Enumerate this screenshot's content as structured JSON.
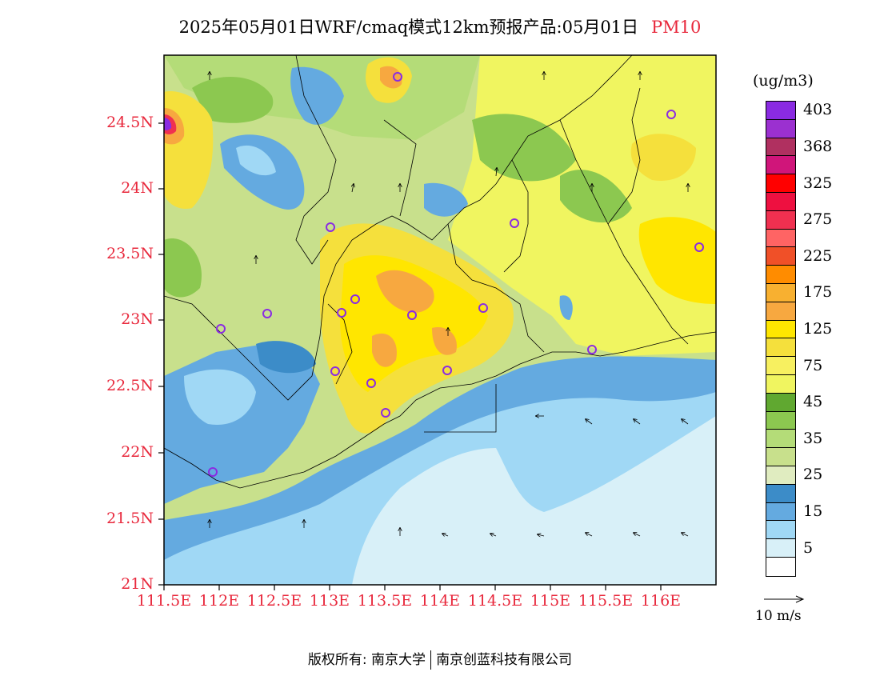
{
  "title": "2025年05月01日WRF/cmaq模式12km预报产品:05月01日",
  "pollutant": "PM10",
  "units": "(ug/m3)",
  "wind_ref_label": "10 m/s",
  "footer": {
    "left": "版权所有: 南京大学",
    "right": "南京创蓝科技有限公司"
  },
  "lat_labels": [
    "24.5N",
    "24N",
    "23.5N",
    "23N",
    "22.5N",
    "22N",
    "21.5N",
    "21N"
  ],
  "lon_labels": [
    "111.5E",
    "112E",
    "112.5E",
    "113E",
    "113.5E",
    "114E",
    "114.5E",
    "115E",
    "115.5E",
    "116E"
  ],
  "legend": [
    {
      "label": "403",
      "color": "#8a2be2"
    },
    {
      "label": "",
      "color": "#9b30d0"
    },
    {
      "label": "368",
      "color": "#b03060"
    },
    {
      "label": "",
      "color": "#d0157a"
    },
    {
      "label": "325",
      "color": "#ff0000"
    },
    {
      "label": "",
      "color": "#ee1040"
    },
    {
      "label": "275",
      "color": "#f03050"
    },
    {
      "label": "",
      "color": "#ff6464"
    },
    {
      "label": "225",
      "color": "#f05028"
    },
    {
      "label": "",
      "color": "#ff8c00"
    },
    {
      "label": "175",
      "color": "#f8b030"
    },
    {
      "label": "",
      "color": "#f7a840"
    },
    {
      "label": "125",
      "color": "#ffe600"
    },
    {
      "label": "",
      "color": "#f5e03c"
    },
    {
      "label": "75",
      "color": "#f7f060"
    },
    {
      "label": "",
      "color": "#f0f560"
    },
    {
      "label": "45",
      "color": "#60a830"
    },
    {
      "label": "",
      "color": "#8cc850"
    },
    {
      "label": "35",
      "color": "#b4dc78"
    },
    {
      "label": "",
      "color": "#c8e08c"
    },
    {
      "label": "25",
      "color": "#e0ecc0"
    },
    {
      "label": "",
      "color": "#3c8cc8"
    },
    {
      "label": "15",
      "color": "#64aae0"
    },
    {
      "label": "",
      "color": "#a0d8f5"
    },
    {
      "label": "5",
      "color": "#d8f0f8"
    },
    {
      "label": "",
      "color": "#ffffff"
    }
  ]
}
